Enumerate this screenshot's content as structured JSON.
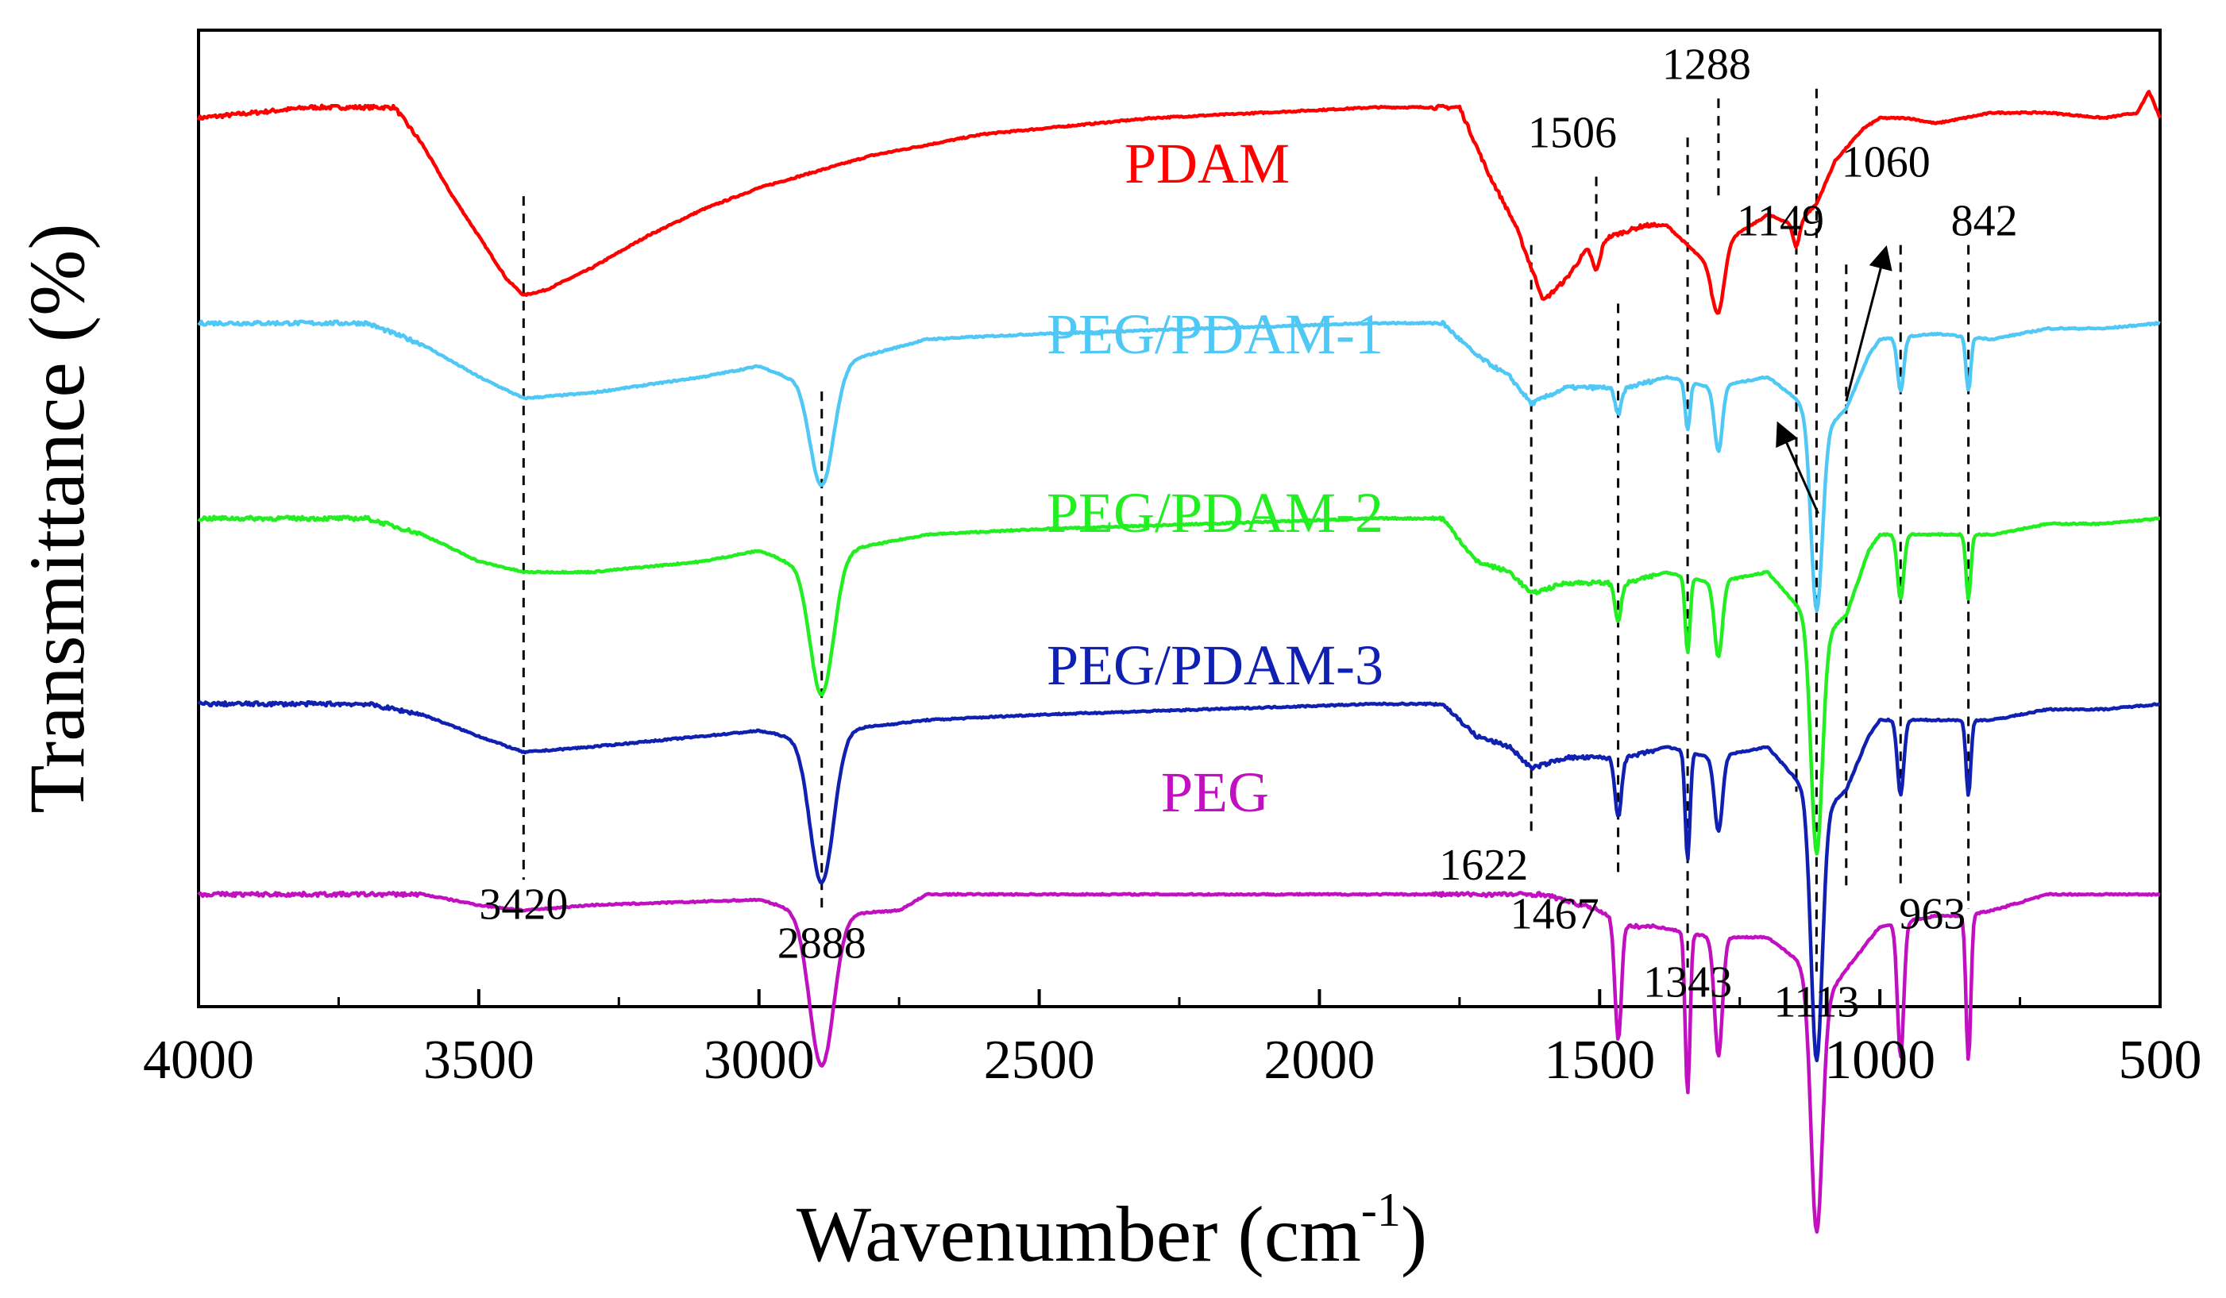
{
  "chart_data": {
    "type": "line",
    "title": "",
    "xlabel": "Wavenumber (cm",
    "xlabel_sup": "-1",
    "xlabel_close": ")",
    "ylabel": "Transmittance (%)",
    "xlim": [
      4000,
      500
    ],
    "x_ticks": [
      "4000",
      "3500",
      "3000",
      "2500",
      "2000",
      "1500",
      "1000",
      "500"
    ],
    "y_ticks_shown": false,
    "grid": false,
    "series": [
      {
        "name": "PDAM",
        "color": "#ff0000",
        "offset": 0.91,
        "baseline": [
          [
            4000,
            0.0
          ],
          [
            3900,
            -0.01
          ],
          [
            3800,
            -0.02
          ],
          [
            3700,
            -0.02
          ],
          [
            3650,
            -0.02
          ],
          [
            3600,
            0.05
          ],
          [
            3550,
            0.14
          ],
          [
            3500,
            0.22
          ],
          [
            3450,
            0.3
          ],
          [
            3420,
            0.33
          ],
          [
            3380,
            0.32
          ],
          [
            3300,
            0.28
          ],
          [
            3200,
            0.22
          ],
          [
            3100,
            0.17
          ],
          [
            3000,
            0.13
          ],
          [
            2900,
            0.1
          ],
          [
            2800,
            0.07
          ],
          [
            2700,
            0.05
          ],
          [
            2600,
            0.03
          ],
          [
            2500,
            0.02
          ],
          [
            2300,
            0.0
          ],
          [
            2100,
            -0.01
          ],
          [
            1900,
            -0.02
          ],
          [
            1800,
            -0.02
          ],
          [
            1750,
            -0.02
          ],
          [
            1700,
            0.1
          ],
          [
            1650,
            0.2
          ],
          [
            1600,
            0.34
          ],
          [
            1560,
            0.3
          ],
          [
            1520,
            0.24
          ],
          [
            1480,
            0.22
          ],
          [
            1420,
            0.2
          ],
          [
            1380,
            0.2
          ],
          [
            1340,
            0.24
          ],
          [
            1300,
            0.28
          ],
          [
            1260,
            0.22
          ],
          [
            1200,
            0.18
          ],
          [
            1150,
            0.2
          ],
          [
            1113,
            0.16
          ],
          [
            1080,
            0.08
          ],
          [
            1030,
            0.02
          ],
          [
            1000,
            0.0
          ],
          [
            950,
            0.0
          ],
          [
            900,
            0.01
          ],
          [
            800,
            -0.01
          ],
          [
            700,
            -0.01
          ],
          [
            600,
            0.0
          ],
          [
            540,
            -0.01
          ],
          [
            520,
            -0.05
          ],
          [
            500,
            0.0
          ]
        ],
        "dips": [
          [
            1506,
            0.05,
            10
          ],
          [
            1288,
            0.1,
            14
          ],
          [
            1149,
            0.04,
            8
          ]
        ]
      },
      {
        "name": "PEG/PDAM-1",
        "color": "#4fc8f5",
        "offset": 0.7,
        "baseline": [
          [
            4000,
            0.0
          ],
          [
            3700,
            0.0
          ],
          [
            3600,
            0.04
          ],
          [
            3500,
            0.1
          ],
          [
            3420,
            0.14
          ],
          [
            3300,
            0.13
          ],
          [
            3100,
            0.1
          ],
          [
            3000,
            0.08
          ],
          [
            2950,
            0.1
          ],
          [
            2700,
            0.03
          ],
          [
            2500,
            0.02
          ],
          [
            2200,
            0.01
          ],
          [
            1900,
            0.0
          ],
          [
            1780,
            0.0
          ],
          [
            1720,
            0.06
          ],
          [
            1660,
            0.1
          ],
          [
            1622,
            0.15
          ],
          [
            1560,
            0.12
          ],
          [
            1450,
            0.12
          ],
          [
            1380,
            0.1
          ],
          [
            1300,
            0.12
          ],
          [
            1200,
            0.1
          ],
          [
            1150,
            0.14
          ],
          [
            1100,
            0.2
          ],
          [
            1060,
            0.16
          ],
          [
            1020,
            0.06
          ],
          [
            1000,
            0.03
          ],
          [
            900,
            0.02
          ],
          [
            800,
            0.03
          ],
          [
            700,
            0.01
          ],
          [
            600,
            0.01
          ],
          [
            500,
            0.0
          ]
        ],
        "dips": [
          [
            2888,
            0.22,
            30
          ],
          [
            1467,
            0.05,
            8
          ],
          [
            1343,
            0.09,
            6
          ],
          [
            1288,
            0.12,
            10
          ],
          [
            1113,
            0.35,
            14
          ],
          [
            963,
            0.1,
            8
          ],
          [
            842,
            0.1,
            6
          ]
        ]
      },
      {
        "name": "PEG/PDAM-2",
        "color": "#22ee22",
        "offset": 0.5,
        "baseline": [
          [
            4000,
            0.0
          ],
          [
            3700,
            0.0
          ],
          [
            3600,
            0.03
          ],
          [
            3500,
            0.08
          ],
          [
            3420,
            0.1
          ],
          [
            3300,
            0.1
          ],
          [
            3100,
            0.08
          ],
          [
            3000,
            0.06
          ],
          [
            2950,
            0.08
          ],
          [
            2700,
            0.03
          ],
          [
            2500,
            0.02
          ],
          [
            2200,
            0.01
          ],
          [
            1900,
            0.0
          ],
          [
            1780,
            0.0
          ],
          [
            1720,
            0.08
          ],
          [
            1660,
            0.1
          ],
          [
            1622,
            0.14
          ],
          [
            1560,
            0.12
          ],
          [
            1450,
            0.12
          ],
          [
            1380,
            0.1
          ],
          [
            1300,
            0.12
          ],
          [
            1200,
            0.1
          ],
          [
            1150,
            0.16
          ],
          [
            1100,
            0.22
          ],
          [
            1060,
            0.18
          ],
          [
            1020,
            0.06
          ],
          [
            1000,
            0.03
          ],
          [
            900,
            0.03
          ],
          [
            800,
            0.03
          ],
          [
            700,
            0.01
          ],
          [
            600,
            0.01
          ],
          [
            500,
            0.0
          ]
        ],
        "dips": [
          [
            2888,
            0.26,
            30
          ],
          [
            1467,
            0.07,
            8
          ],
          [
            1343,
            0.14,
            6
          ],
          [
            1288,
            0.14,
            10
          ],
          [
            1113,
            0.42,
            14
          ],
          [
            963,
            0.12,
            8
          ],
          [
            842,
            0.12,
            6
          ]
        ]
      },
      {
        "name": "PEG/PDAM-3",
        "color": "#1020b0",
        "offset": 0.31,
        "baseline": [
          [
            4000,
            0.0
          ],
          [
            3700,
            0.0
          ],
          [
            3600,
            0.02
          ],
          [
            3500,
            0.06
          ],
          [
            3420,
            0.09
          ],
          [
            3300,
            0.08
          ],
          [
            3100,
            0.06
          ],
          [
            3000,
            0.05
          ],
          [
            2950,
            0.06
          ],
          [
            2700,
            0.03
          ],
          [
            2500,
            0.02
          ],
          [
            2200,
            0.01
          ],
          [
            1900,
            0.0
          ],
          [
            1780,
            0.0
          ],
          [
            1720,
            0.06
          ],
          [
            1660,
            0.08
          ],
          [
            1622,
            0.12
          ],
          [
            1560,
            0.1
          ],
          [
            1450,
            0.1
          ],
          [
            1380,
            0.08
          ],
          [
            1300,
            0.1
          ],
          [
            1200,
            0.08
          ],
          [
            1150,
            0.14
          ],
          [
            1100,
            0.2
          ],
          [
            1060,
            0.16
          ],
          [
            1020,
            0.06
          ],
          [
            1000,
            0.03
          ],
          [
            900,
            0.03
          ],
          [
            800,
            0.03
          ],
          [
            700,
            0.01
          ],
          [
            600,
            0.01
          ],
          [
            500,
            0.0
          ]
        ],
        "dips": [
          [
            2888,
            0.28,
            30
          ],
          [
            1467,
            0.11,
            8
          ],
          [
            1343,
            0.2,
            6
          ],
          [
            1288,
            0.14,
            10
          ],
          [
            1113,
            0.48,
            14
          ],
          [
            963,
            0.14,
            8
          ],
          [
            842,
            0.14,
            6
          ]
        ]
      },
      {
        "name": "PEG",
        "color": "#c010c0",
        "offset": 0.115,
        "baseline": [
          [
            4000,
            0.0
          ],
          [
            3600,
            0.0
          ],
          [
            3500,
            0.02
          ],
          [
            3420,
            0.03
          ],
          [
            3300,
            0.02
          ],
          [
            3000,
            0.01
          ],
          [
            2900,
            0.04
          ],
          [
            2750,
            0.03
          ],
          [
            2700,
            0.0
          ],
          [
            2500,
            0.0
          ],
          [
            2000,
            0.0
          ],
          [
            1800,
            0.0
          ],
          [
            1600,
            0.0
          ],
          [
            1500,
            0.03
          ],
          [
            1450,
            0.06
          ],
          [
            1400,
            0.06
          ],
          [
            1300,
            0.08
          ],
          [
            1200,
            0.08
          ],
          [
            1150,
            0.12
          ],
          [
            1100,
            0.2
          ],
          [
            1060,
            0.14
          ],
          [
            1000,
            0.06
          ],
          [
            900,
            0.04
          ],
          [
            850,
            0.04
          ],
          [
            800,
            0.03
          ],
          [
            700,
            0.0
          ],
          [
            600,
            0.0
          ],
          [
            500,
            0.0
          ]
        ],
        "dips": [
          [
            2888,
            0.28,
            30
          ],
          [
            1467,
            0.22,
            8
          ],
          [
            1343,
            0.3,
            6
          ],
          [
            1288,
            0.22,
            10
          ],
          [
            1113,
            0.45,
            14
          ],
          [
            963,
            0.25,
            8
          ],
          [
            842,
            0.27,
            6
          ]
        ]
      }
    ],
    "annotations": [
      {
        "text": "3420",
        "x": 3420,
        "line_top": 0.83,
        "line_bottom": 0.13,
        "label_y": 0.09
      },
      {
        "text": "2888",
        "x": 2888,
        "line_top": 0.63,
        "line_bottom": 0.1,
        "label_y": 0.05
      },
      {
        "text": "1622",
        "x": 1622,
        "line_top": 0.78,
        "line_bottom": 0.18,
        "label_y": 0.13
      },
      {
        "text": "1506",
        "x": 1506,
        "line_top": 0.85,
        "line_bottom": 0.78,
        "label_y": 0.88
      },
      {
        "text": "1467",
        "x": 1467,
        "line_top": 0.72,
        "line_bottom": 0.13,
        "label_y": 0.08
      },
      {
        "text": "1343",
        "x": 1343,
        "line_top": 0.89,
        "line_bottom": 0.04,
        "label_y": 0.01
      },
      {
        "text": "1288",
        "x": 1288,
        "line_top": 0.93,
        "line_bottom": 0.83,
        "label_y": 0.95
      },
      {
        "text": "1149",
        "x": 1149,
        "line_top": 0.78,
        "line_bottom": 0.22,
        "label_y": 0.79
      },
      {
        "text": "1113",
        "x": 1113,
        "line_top": 0.94,
        "line_bottom": 0.03,
        "label_y": -0.01
      },
      {
        "text": "1060",
        "x": 1060,
        "line_top": 0.76,
        "line_bottom": 0.12,
        "label_y": 0.85
      },
      {
        "text": "963",
        "x": 963,
        "line_top": 0.78,
        "line_bottom": 0.12,
        "label_y": 0.08
      },
      {
        "text": "842",
        "x": 842,
        "line_top": 0.78,
        "line_bottom": 0.1,
        "label_y": 0.79
      }
    ]
  }
}
